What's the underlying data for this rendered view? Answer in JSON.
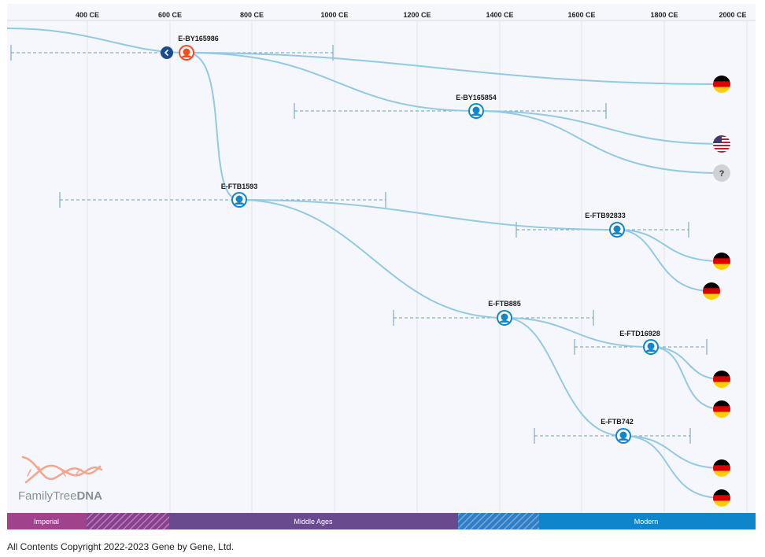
{
  "axis": {
    "ticks": [
      "400 CE",
      "600 CE",
      "800 CE",
      "1000 CE",
      "1200 CE",
      "1400 CE",
      "1600 CE",
      "1800 CE",
      "2000 CE"
    ]
  },
  "nodes": [
    {
      "id": "E-BY165986",
      "label": "E-BY165986",
      "kind": "current"
    },
    {
      "id": "E-BY165854",
      "label": "E-BY165854",
      "kind": "branch"
    },
    {
      "id": "E-FTB1593",
      "label": "E-FTB1593",
      "kind": "branch"
    },
    {
      "id": "E-FTB92833",
      "label": "E-FTB92833",
      "kind": "branch"
    },
    {
      "id": "E-FTB885",
      "label": "E-FTB885",
      "kind": "branch"
    },
    {
      "id": "E-FTD16928",
      "label": "E-FTD16928",
      "kind": "branch"
    },
    {
      "id": "E-FTB742",
      "label": "E-FTB742",
      "kind": "branch"
    }
  ],
  "leaves": [
    {
      "country": "germany",
      "icon": "germany-flag-icon"
    },
    {
      "country": "united-states",
      "icon": "usa-flag-icon"
    },
    {
      "country": "unknown",
      "icon": "unknown-country-icon",
      "label": "?"
    },
    {
      "country": "germany",
      "icon": "germany-flag-icon"
    },
    {
      "country": "germany",
      "icon": "germany-flag-icon"
    },
    {
      "country": "germany",
      "icon": "germany-flag-icon"
    },
    {
      "country": "germany",
      "icon": "germany-flag-icon"
    },
    {
      "country": "germany",
      "icon": "germany-flag-icon"
    },
    {
      "country": "germany",
      "icon": "germany-flag-icon"
    }
  ],
  "eras": [
    {
      "label": "Imperial",
      "color": "#a0428c"
    },
    {
      "label": "",
      "color": "#8a3f8f"
    },
    {
      "label": "Middle Ages",
      "color": "#6a4a8e"
    },
    {
      "label": "",
      "color": "#2f7ec6"
    },
    {
      "label": "Modern",
      "color": "#0f86cc"
    }
  ],
  "logo": {
    "word_regular": "FamilyTree",
    "word_bold": "DNA"
  },
  "footer": {
    "copyright": "All Contents Copyright 2022-2023 Gene by Gene, Ltd."
  },
  "colors": {
    "branch_line": "#93c9e3",
    "node_blue": "#1186c8",
    "node_orange": "#f04e23",
    "back_button": "#1a4b8c",
    "interval": "#6c9db2"
  }
}
